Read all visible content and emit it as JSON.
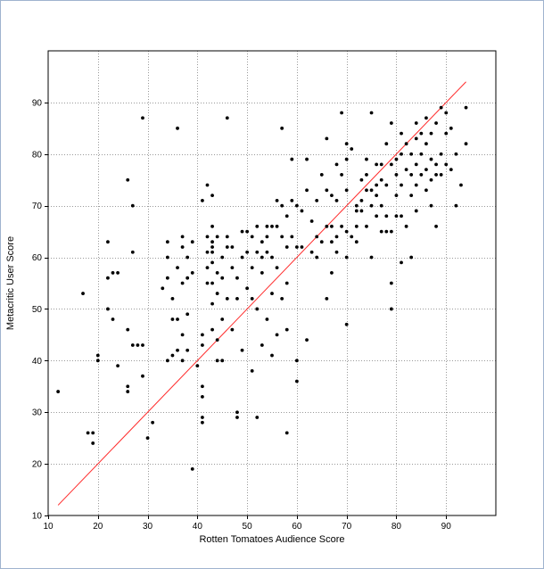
{
  "chart_data": {
    "type": "scatter",
    "title": "",
    "xlabel": "Rotten Tomatoes Audience Score",
    "ylabel": "Metacritic User Score",
    "xlim": [
      10,
      100
    ],
    "ylim": [
      10,
      100
    ],
    "x_ticks": [
      10,
      20,
      30,
      40,
      50,
      60,
      70,
      80,
      90
    ],
    "y_ticks": [
      10,
      20,
      30,
      40,
      50,
      60,
      70,
      80,
      90
    ],
    "grid": true,
    "grid_style": "dotted",
    "legend": "none",
    "colors": {
      "points": "#000000",
      "reference_line": "#ff2a2a",
      "grid": "#999999"
    },
    "reference_line": {
      "x": [
        12,
        94
      ],
      "y": [
        12,
        94
      ]
    },
    "points": [
      [
        12,
        34
      ],
      [
        17,
        53
      ],
      [
        18,
        26
      ],
      [
        19,
        24
      ],
      [
        19,
        26
      ],
      [
        20,
        40
      ],
      [
        20,
        41
      ],
      [
        22,
        50
      ],
      [
        22,
        56
      ],
      [
        22,
        63
      ],
      [
        23,
        48
      ],
      [
        23,
        57
      ],
      [
        24,
        39
      ],
      [
        24,
        57
      ],
      [
        26,
        34
      ],
      [
        26,
        35
      ],
      [
        26,
        46
      ],
      [
        26,
        75
      ],
      [
        27,
        61
      ],
      [
        27,
        70
      ],
      [
        27,
        43
      ],
      [
        28,
        43
      ],
      [
        29,
        43
      ],
      [
        29,
        87
      ],
      [
        29,
        37
      ],
      [
        30,
        25
      ],
      [
        31,
        28
      ],
      [
        33,
        54
      ],
      [
        34,
        40
      ],
      [
        34,
        56
      ],
      [
        34,
        60
      ],
      [
        34,
        63
      ],
      [
        35,
        48
      ],
      [
        35,
        41
      ],
      [
        35,
        52
      ],
      [
        36,
        42
      ],
      [
        36,
        48
      ],
      [
        36,
        85
      ],
      [
        36,
        58
      ],
      [
        37,
        55
      ],
      [
        37,
        45
      ],
      [
        37,
        40
      ],
      [
        37,
        62
      ],
      [
        37,
        64
      ],
      [
        38,
        42
      ],
      [
        38,
        49
      ],
      [
        38,
        56
      ],
      [
        38,
        60
      ],
      [
        39,
        57
      ],
      [
        39,
        63
      ],
      [
        39,
        19
      ],
      [
        40,
        39
      ],
      [
        41,
        28
      ],
      [
        41,
        29
      ],
      [
        41,
        33
      ],
      [
        41,
        35
      ],
      [
        41,
        43
      ],
      [
        41,
        45
      ],
      [
        41,
        71
      ],
      [
        42,
        58
      ],
      [
        42,
        64
      ],
      [
        42,
        61
      ],
      [
        42,
        55
      ],
      [
        42,
        74
      ],
      [
        43,
        55
      ],
      [
        43,
        59
      ],
      [
        43,
        62
      ],
      [
        43,
        63
      ],
      [
        43,
        66
      ],
      [
        43,
        72
      ],
      [
        43,
        46
      ],
      [
        43,
        51
      ],
      [
        43,
        61
      ],
      [
        44,
        40
      ],
      [
        44,
        44
      ],
      [
        44,
        53
      ],
      [
        44,
        57
      ],
      [
        44,
        64
      ],
      [
        45,
        40
      ],
      [
        45,
        48
      ],
      [
        45,
        56
      ],
      [
        45,
        60
      ],
      [
        46,
        52
      ],
      [
        46,
        62
      ],
      [
        46,
        64
      ],
      [
        46,
        87
      ],
      [
        47,
        46
      ],
      [
        47,
        58
      ],
      [
        47,
        62
      ],
      [
        48,
        29
      ],
      [
        48,
        30
      ],
      [
        48,
        52
      ],
      [
        48,
        56
      ],
      [
        49,
        42
      ],
      [
        49,
        60
      ],
      [
        49,
        65
      ],
      [
        50,
        54
      ],
      [
        50,
        61
      ],
      [
        50,
        65
      ],
      [
        51,
        38
      ],
      [
        51,
        52
      ],
      [
        51,
        58
      ],
      [
        51,
        64
      ],
      [
        52,
        29
      ],
      [
        52,
        50
      ],
      [
        52,
        61
      ],
      [
        52,
        66
      ],
      [
        53,
        43
      ],
      [
        53,
        57
      ],
      [
        53,
        60
      ],
      [
        53,
        63
      ],
      [
        54,
        48
      ],
      [
        54,
        61
      ],
      [
        54,
        64
      ],
      [
        54,
        66
      ],
      [
        55,
        41
      ],
      [
        55,
        53
      ],
      [
        55,
        60
      ],
      [
        55,
        66
      ],
      [
        56,
        45
      ],
      [
        56,
        58
      ],
      [
        56,
        66
      ],
      [
        56,
        71
      ],
      [
        57,
        52
      ],
      [
        57,
        64
      ],
      [
        57,
        85
      ],
      [
        57,
        70
      ],
      [
        58,
        26
      ],
      [
        58,
        46
      ],
      [
        58,
        55
      ],
      [
        58,
        62
      ],
      [
        58,
        68
      ],
      [
        59,
        64
      ],
      [
        59,
        71
      ],
      [
        59,
        79
      ],
      [
        60,
        40
      ],
      [
        60,
        36
      ],
      [
        60,
        62
      ],
      [
        60,
        70
      ],
      [
        61,
        62
      ],
      [
        61,
        69
      ],
      [
        62,
        44
      ],
      [
        62,
        73
      ],
      [
        62,
        79
      ],
      [
        63,
        61
      ],
      [
        63,
        67
      ],
      [
        64,
        60
      ],
      [
        64,
        64
      ],
      [
        64,
        71
      ],
      [
        65,
        63
      ],
      [
        65,
        76
      ],
      [
        66,
        52
      ],
      [
        66,
        66
      ],
      [
        66,
        73
      ],
      [
        66,
        83
      ],
      [
        67,
        57
      ],
      [
        67,
        63
      ],
      [
        67,
        66
      ],
      [
        67,
        72
      ],
      [
        68,
        61
      ],
      [
        68,
        64
      ],
      [
        68,
        71
      ],
      [
        68,
        78
      ],
      [
        69,
        66
      ],
      [
        69,
        76
      ],
      [
        69,
        88
      ],
      [
        70,
        47
      ],
      [
        70,
        60
      ],
      [
        70,
        65
      ],
      [
        70,
        73
      ],
      [
        70,
        79
      ],
      [
        70,
        82
      ],
      [
        71,
        64
      ],
      [
        71,
        81
      ],
      [
        72,
        63
      ],
      [
        72,
        66
      ],
      [
        72,
        69
      ],
      [
        72,
        70
      ],
      [
        73,
        69
      ],
      [
        73,
        71
      ],
      [
        73,
        75
      ],
      [
        74,
        66
      ],
      [
        74,
        73
      ],
      [
        74,
        76
      ],
      [
        74,
        79
      ],
      [
        75,
        60
      ],
      [
        75,
        70
      ],
      [
        75,
        73
      ],
      [
        75,
        88
      ],
      [
        76,
        68
      ],
      [
        76,
        72
      ],
      [
        76,
        74
      ],
      [
        76,
        78
      ],
      [
        77,
        65
      ],
      [
        77,
        70
      ],
      [
        77,
        75
      ],
      [
        77,
        78
      ],
      [
        78,
        65
      ],
      [
        78,
        68
      ],
      [
        78,
        74
      ],
      [
        78,
        82
      ],
      [
        79,
        50
      ],
      [
        79,
        55
      ],
      [
        79,
        65
      ],
      [
        79,
        78
      ],
      [
        79,
        86
      ],
      [
        80,
        68
      ],
      [
        80,
        72
      ],
      [
        80,
        76
      ],
      [
        80,
        79
      ],
      [
        81,
        59
      ],
      [
        81,
        68
      ],
      [
        81,
        74
      ],
      [
        81,
        80
      ],
      [
        81,
        84
      ],
      [
        82,
        66
      ],
      [
        82,
        77
      ],
      [
        82,
        82
      ],
      [
        83,
        60
      ],
      [
        83,
        72
      ],
      [
        83,
        76
      ],
      [
        83,
        80
      ],
      [
        84,
        69
      ],
      [
        84,
        74
      ],
      [
        84,
        78
      ],
      [
        84,
        83
      ],
      [
        84,
        86
      ],
      [
        85,
        76
      ],
      [
        85,
        80
      ],
      [
        85,
        84
      ],
      [
        86,
        73
      ],
      [
        86,
        77
      ],
      [
        86,
        82
      ],
      [
        86,
        87
      ],
      [
        87,
        70
      ],
      [
        87,
        75
      ],
      [
        87,
        79
      ],
      [
        87,
        84
      ],
      [
        88,
        66
      ],
      [
        88,
        76
      ],
      [
        88,
        78
      ],
      [
        88,
        86
      ],
      [
        89,
        76
      ],
      [
        89,
        80
      ],
      [
        89,
        89
      ],
      [
        90,
        78
      ],
      [
        90,
        84
      ],
      [
        90,
        88
      ],
      [
        91,
        77
      ],
      [
        91,
        85
      ],
      [
        92,
        70
      ],
      [
        92,
        80
      ],
      [
        93,
        74
      ],
      [
        94,
        82
      ],
      [
        94,
        89
      ]
    ]
  }
}
